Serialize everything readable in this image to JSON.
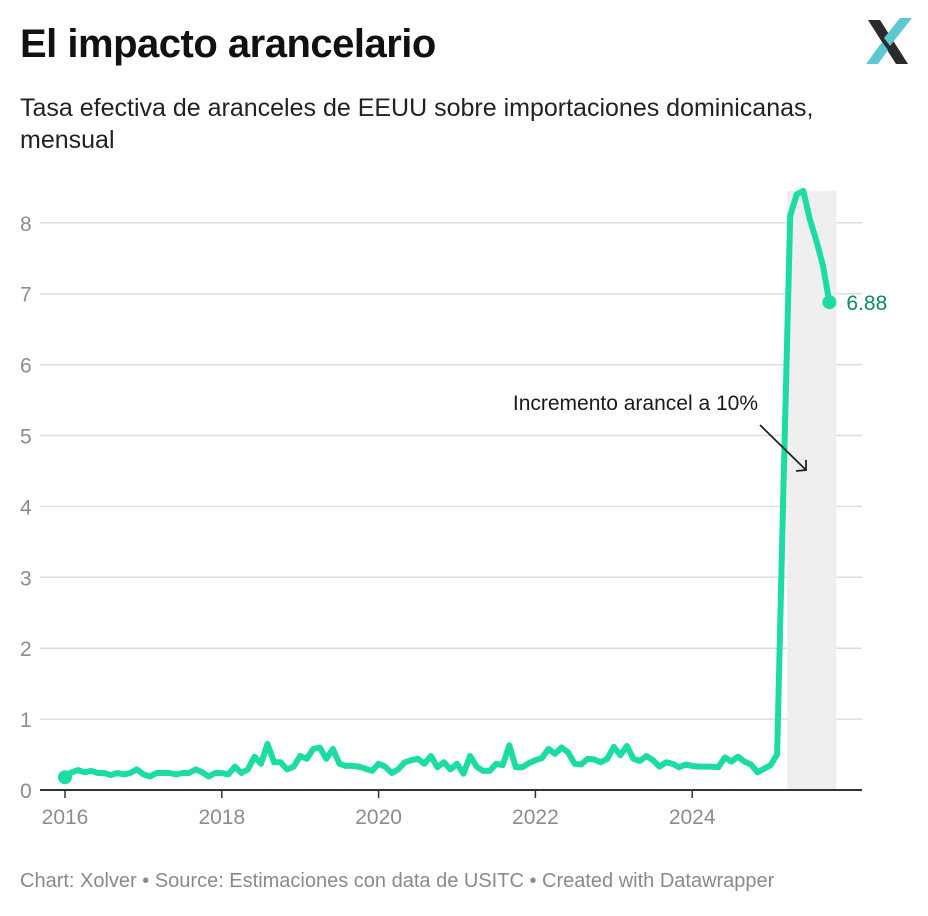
{
  "header": {
    "title": "El impacto arancelario",
    "subtitle": "Tasa efectiva de aranceles de EEUU sobre importaciones dominicanas, mensual",
    "logo_icon": "xolver-x-logo-icon"
  },
  "footer": {
    "text": "Chart: Xolver • Source: Estimaciones con data de USITC • Created with Datawrapper"
  },
  "chart_data": {
    "type": "line",
    "title": "El impacto arancelario",
    "subtitle": "Tasa efectiva de aranceles de EEUU sobre importaciones dominicanas, mensual",
    "xlabel": "",
    "ylabel": "",
    "ylim": [
      0,
      8.45
    ],
    "yticks": [
      "0",
      "1",
      "2",
      "3",
      "4",
      "5",
      "6",
      "7",
      "8"
    ],
    "xticks": [
      "2016",
      "2018",
      "2020",
      "2022",
      "2024"
    ],
    "grid": true,
    "line_color": "#1ddca3",
    "end_label_color": "#0b8a5e",
    "highlight_band_color": "#efefef",
    "end_value_label": "6.88",
    "annotation": "Incremento arancel a 10%",
    "highlight_range": [
      "2025-04",
      "2025-10"
    ],
    "x": [
      "2016-01",
      "2016-02",
      "2016-03",
      "2016-04",
      "2016-05",
      "2016-06",
      "2016-07",
      "2016-08",
      "2016-09",
      "2016-10",
      "2016-11",
      "2016-12",
      "2017-01",
      "2017-02",
      "2017-03",
      "2017-04",
      "2017-05",
      "2017-06",
      "2017-07",
      "2017-08",
      "2017-09",
      "2017-10",
      "2017-11",
      "2017-12",
      "2018-01",
      "2018-02",
      "2018-03",
      "2018-04",
      "2018-05",
      "2018-06",
      "2018-07",
      "2018-08",
      "2018-09",
      "2018-10",
      "2018-11",
      "2018-12",
      "2019-01",
      "2019-02",
      "2019-03",
      "2019-04",
      "2019-05",
      "2019-06",
      "2019-07",
      "2019-08",
      "2019-09",
      "2019-10",
      "2019-11",
      "2019-12",
      "2020-01",
      "2020-02",
      "2020-03",
      "2020-04",
      "2020-05",
      "2020-06",
      "2020-07",
      "2020-08",
      "2020-09",
      "2020-10",
      "2020-11",
      "2020-12",
      "2021-01",
      "2021-02",
      "2021-03",
      "2021-04",
      "2021-05",
      "2021-06",
      "2021-07",
      "2021-08",
      "2021-09",
      "2021-10",
      "2021-11",
      "2021-12",
      "2022-01",
      "2022-02",
      "2022-03",
      "2022-04",
      "2022-05",
      "2022-06",
      "2022-07",
      "2022-08",
      "2022-09",
      "2022-10",
      "2022-11",
      "2022-12",
      "2023-01",
      "2023-02",
      "2023-03",
      "2023-04",
      "2023-05",
      "2023-06",
      "2023-07",
      "2023-08",
      "2023-09",
      "2023-10",
      "2023-11",
      "2023-12",
      "2024-01",
      "2024-02",
      "2024-03",
      "2024-04",
      "2024-05",
      "2024-06",
      "2024-07",
      "2024-08",
      "2024-09",
      "2024-10",
      "2024-11",
      "2024-12",
      "2025-01",
      "2025-02",
      "2025-03",
      "2025-04",
      "2025-05",
      "2025-06",
      "2025-07",
      "2025-08",
      "2025-09",
      "2025-10"
    ],
    "series": [
      {
        "values": [
          0.18,
          0.25,
          0.28,
          0.25,
          0.27,
          0.24,
          0.24,
          0.21,
          0.24,
          0.22,
          0.24,
          0.29,
          0.22,
          0.19,
          0.24,
          0.24,
          0.24,
          0.22,
          0.24,
          0.24,
          0.29,
          0.25,
          0.19,
          0.24,
          0.24,
          0.22,
          0.33,
          0.24,
          0.29,
          0.47,
          0.37,
          0.65,
          0.39,
          0.39,
          0.29,
          0.33,
          0.48,
          0.44,
          0.58,
          0.6,
          0.44,
          0.58,
          0.37,
          0.34,
          0.34,
          0.33,
          0.3,
          0.27,
          0.37,
          0.33,
          0.24,
          0.29,
          0.39,
          0.42,
          0.44,
          0.37,
          0.48,
          0.32,
          0.39,
          0.29,
          0.37,
          0.23,
          0.48,
          0.33,
          0.27,
          0.27,
          0.37,
          0.35,
          0.63,
          0.32,
          0.32,
          0.38,
          0.42,
          0.45,
          0.58,
          0.51,
          0.6,
          0.53,
          0.37,
          0.36,
          0.44,
          0.43,
          0.39,
          0.44,
          0.61,
          0.49,
          0.62,
          0.44,
          0.41,
          0.48,
          0.42,
          0.33,
          0.39,
          0.37,
          0.32,
          0.36,
          0.34,
          0.33,
          0.33,
          0.33,
          0.32,
          0.46,
          0.4,
          0.47,
          0.4,
          0.36,
          0.25,
          0.3,
          0.35,
          0.5,
          4.4,
          8.1,
          8.4,
          8.45,
          8.05,
          7.75,
          7.4,
          6.88
        ]
      }
    ]
  }
}
